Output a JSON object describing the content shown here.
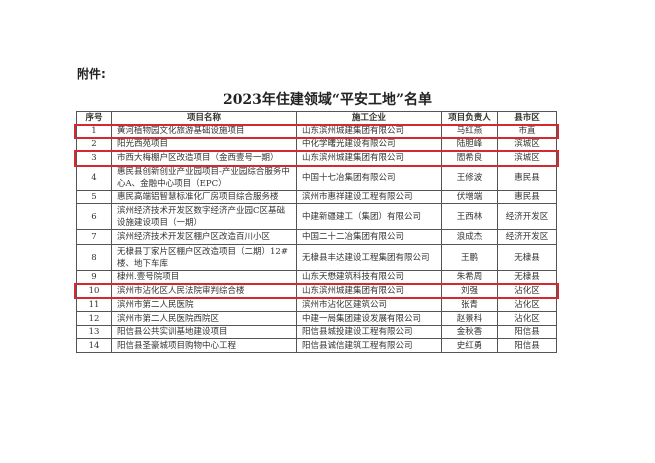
{
  "attachment_label": "附件:",
  "title": "2023年住建领域“平安工地”名单",
  "highlight_color": "#d42a2f",
  "table": {
    "headers": [
      "序号",
      "项目名称",
      "施工企业",
      "项目负责人",
      "县市区"
    ],
    "rows": [
      {
        "no": "1",
        "project": "黄河植物园文化旅游基础设施项目",
        "company": "山东滨州城建集团有限公司",
        "manager": "马红燕",
        "district": "市直",
        "highlighted": true
      },
      {
        "no": "2",
        "project": "阳光西苑项目",
        "company": "中化学曙光建设有限公司",
        "manager": "陆胆峰",
        "district": "滨城区",
        "highlighted": false
      },
      {
        "no": "3",
        "project": "市西大梅棚户区改造项目（金西壹号一期）",
        "company": "山东滨州城建集团有限公司",
        "manager": "閻希良",
        "district": "滨城区",
        "highlighted": true
      },
      {
        "no": "4",
        "project": "惠民县创新创业产业园项目-产业园综合服务中心A、金融中心项目（EPC）",
        "company": "中国十七冶集团有限公司",
        "manager": "王修波",
        "district": "惠民县",
        "highlighted": false
      },
      {
        "no": "5",
        "project": "惠民高端铝智慧标准化厂房项目综合服务楼",
        "company": "滨州市惠祥建设工程有限公司",
        "manager": "伏增端",
        "district": "惠民县",
        "highlighted": false
      },
      {
        "no": "6",
        "project": "滨州经济技术开发区数字经济产业园C区基础设施建设项目（一期）",
        "company": "中建新疆建工（集团）有限公司",
        "manager": "王西林",
        "district": "经济开发区",
        "highlighted": false
      },
      {
        "no": "7",
        "project": "滨州经济技术开发区棚户区改造百川小区",
        "company": "中国二十二冶集团有限公司",
        "manager": "浪成杰",
        "district": "经济开发区",
        "highlighted": false
      },
      {
        "no": "8",
        "project": "无棣县丁家片区棚户区改造项目（二期）12#楼、地下车库",
        "company": "无棣县丰达建设工程集团有限公司",
        "manager": "王鹏",
        "district": "无棣县",
        "highlighted": false
      },
      {
        "no": "9",
        "project": "棣州.壹号院项目",
        "company": "山东天懋建筑科技有限公司",
        "manager": "朱希周",
        "district": "无棣县",
        "highlighted": false
      },
      {
        "no": "10",
        "project": "滨州市沾化区人民法院审判综合楼",
        "company": "山东滨州城建集团有限公司",
        "manager": "刘强",
        "district": "沾化区",
        "highlighted": true
      },
      {
        "no": "11",
        "project": "滨州市第二人民医院",
        "company": "滨州市沾化区建筑公司",
        "manager": "张青",
        "district": "沾化区",
        "highlighted": false
      },
      {
        "no": "12",
        "project": "滨州市第二人民医院西院区",
        "company": "中建一局集团建设发展有限公司",
        "manager": "赵景科",
        "district": "沾化区",
        "highlighted": false
      },
      {
        "no": "13",
        "project": "阳信县公共实训基地建设项目",
        "company": "阳信县城投建设工程有限公司",
        "manager": "金秋香",
        "district": "阳信县",
        "highlighted": false
      },
      {
        "no": "14",
        "project": "阳信县圣豪城项目购物中心工程",
        "company": "阳信县诚信建筑工程有限公司",
        "manager": "史红勇",
        "district": "阳信县",
        "highlighted": false
      }
    ]
  }
}
